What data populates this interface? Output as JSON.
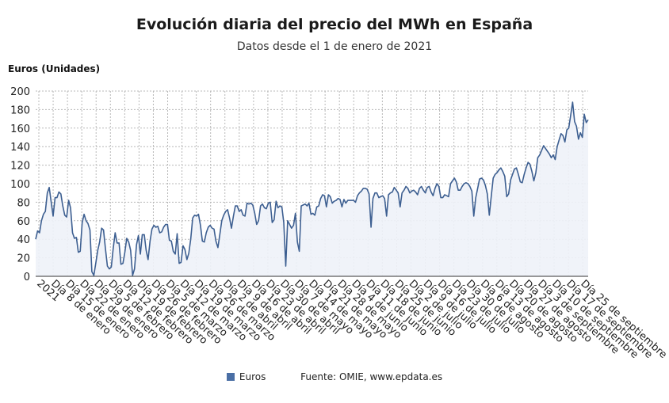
{
  "title": "Evolución diaria del precio del MWh en España",
  "subtitle": "Datos desde el 1 de enero de 2021",
  "legend": {
    "label": "Euros",
    "color": "#4a6fa5"
  },
  "source": "Fuente: OMIE, www.epdata.es",
  "chart_data": {
    "type": "area",
    "ylabel": "Euros (Unidades)",
    "ylim": [
      0,
      200
    ],
    "yticks": [
      0,
      20,
      40,
      60,
      80,
      100,
      120,
      140,
      160,
      180,
      200
    ],
    "grid": true,
    "legend_position": "bottom",
    "line_color": "#3d5f91",
    "fill_color": "#eef2f8",
    "x_tick_labels": [
      "2021",
      "Día 8 de enero",
      "Día 15 de enero",
      "Día 22 de enero",
      "Día 29 de enero",
      "Día 5 de febrero",
      "Día 12 de febrero",
      "Día 19 de febrero",
      "Día 26 de febrero",
      "Día 5 de marzo",
      "Día 12 de marzo",
      "Día 19 de marzo",
      "Día 26 de marzo",
      "Día 2 de abril",
      "Día 9 de abril",
      "Día 16 de abril",
      "Día 23 de abril",
      "Día 30 de abril",
      "Día 7 de mayo",
      "Día 14 de mayo",
      "Día 21 de mayo",
      "Día 28 de mayo",
      "Día 4 de junio",
      "Día 11 de junio",
      "Día 18 de junio",
      "Día 25 de junio",
      "Día 2 de julio",
      "Día 9 de julio",
      "Día 16 de julio",
      "Día 23 de julio",
      "Día 30 de julio",
      "Día 6 de agosto",
      "Día 13 de agosto",
      "Día 20 de agosto",
      "Día 27 de agosto",
      "Día 3 de septiembre",
      "Día 10 de septiembre",
      "Día 17 de septiembre",
      "Día 25 de septiembre"
    ],
    "series": [
      {
        "name": "Euros",
        "values": [
          40,
          49,
          47,
          60,
          67,
          70,
          90,
          96,
          80,
          65,
          85,
          85,
          91,
          89,
          76,
          66,
          64,
          82,
          74,
          47,
          41,
          42,
          26,
          27,
          58,
          67,
          60,
          57,
          50,
          5,
          1,
          14,
          28,
          37,
          52,
          50,
          30,
          11,
          8,
          10,
          30,
          47,
          36,
          36,
          13,
          14,
          26,
          41,
          37,
          28,
          1,
          8,
          34,
          44,
          24,
          45,
          45,
          28,
          18,
          38,
          51,
          55,
          53,
          54,
          47,
          48,
          53,
          56,
          56,
          39,
          38,
          27,
          24,
          46,
          14,
          15,
          33,
          29,
          18,
          25,
          40,
          63,
          66,
          65,
          67,
          55,
          38,
          37,
          47,
          53,
          55,
          52,
          51,
          38,
          31,
          45,
          60,
          66,
          70,
          72,
          63,
          52,
          65,
          76,
          76,
          70,
          72,
          66,
          65,
          79,
          78,
          79,
          77,
          68,
          56,
          60,
          76,
          78,
          74,
          73,
          79,
          80,
          58,
          61,
          81,
          74,
          76,
          75,
          58,
          11,
          60,
          56,
          52,
          55,
          68,
          37,
          27,
          76,
          77,
          78,
          76,
          79,
          67,
          68,
          66,
          75,
          76,
          84,
          88,
          87,
          75,
          88,
          86,
          79,
          81,
          82,
          84,
          83,
          75,
          83,
          79,
          82,
          82,
          82,
          82,
          80,
          87,
          90,
          92,
          95,
          95,
          94,
          89,
          53,
          84,
          90,
          90,
          85,
          86,
          87,
          84,
          65,
          88,
          90,
          91,
          96,
          93,
          90,
          75,
          90,
          93,
          97,
          95,
          90,
          92,
          93,
          91,
          88,
          95,
          97,
          93,
          90,
          96,
          97,
          91,
          87,
          95,
          100,
          97,
          85,
          85,
          88,
          87,
          86,
          100,
          103,
          106,
          102,
          93,
          93,
          97,
          100,
          101,
          100,
          97,
          92,
          65,
          85,
          95,
          105,
          106,
          104,
          98,
          89,
          66,
          86,
          106,
          110,
          112,
          115,
          117,
          113,
          108,
          86,
          89,
          104,
          110,
          116,
          117,
          110,
          102,
          101,
          110,
          117,
          123,
          121,
          113,
          103,
          112,
          128,
          131,
          136,
          141,
          138,
          135,
          132,
          128,
          131,
          126,
          140,
          147,
          154,
          152,
          145,
          158,
          160,
          174,
          188,
          167,
          162,
          148,
          155,
          150,
          175,
          166,
          169
        ]
      }
    ]
  }
}
